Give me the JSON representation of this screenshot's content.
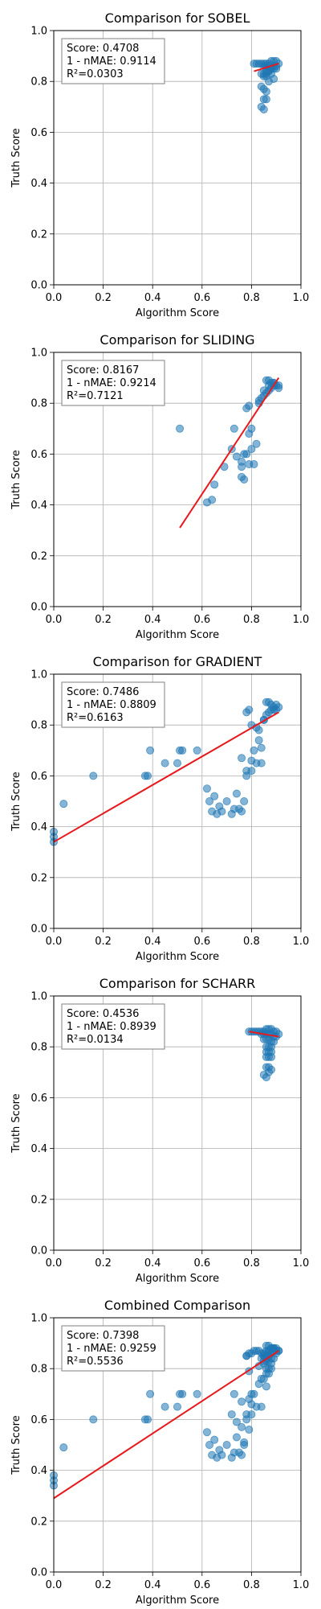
{
  "chart_data": [
    {
      "type": "scatter",
      "title": "Comparison for SOBEL",
      "xlabel": "Algorithm Score",
      "ylabel": "Truth Score",
      "xlim": [
        0,
        1
      ],
      "ylim": [
        0,
        1
      ],
      "xticks": [
        "0.0",
        "0.2",
        "0.4",
        "0.6",
        "0.8",
        "1.0"
      ],
      "yticks": [
        "0.0",
        "0.2",
        "0.4",
        "0.6",
        "0.8",
        "1.0"
      ],
      "grid": true,
      "stats": [
        "Score: 0.4708",
        "1 - nMAE: 0.9114",
        "R²=0.0303"
      ],
      "fit": [
        [
          0.81,
          0.84
        ],
        [
          0.91,
          0.87
        ]
      ],
      "x": [
        0.81,
        0.82,
        0.83,
        0.84,
        0.85,
        0.86,
        0.87,
        0.88,
        0.89,
        0.9,
        0.91,
        0.85,
        0.86,
        0.87,
        0.88,
        0.89,
        0.9,
        0.86,
        0.87,
        0.88,
        0.89,
        0.9,
        0.84,
        0.85,
        0.86,
        0.87,
        0.88,
        0.85,
        0.86,
        0.84,
        0.85,
        0.86,
        0.85,
        0.86,
        0.84,
        0.85,
        0.87,
        0.89
      ],
      "y": [
        0.87,
        0.87,
        0.87,
        0.87,
        0.87,
        0.87,
        0.87,
        0.88,
        0.88,
        0.88,
        0.87,
        0.86,
        0.86,
        0.86,
        0.85,
        0.86,
        0.86,
        0.84,
        0.84,
        0.85,
        0.85,
        0.85,
        0.83,
        0.83,
        0.83,
        0.84,
        0.83,
        0.82,
        0.82,
        0.78,
        0.77,
        0.76,
        0.73,
        0.73,
        0.7,
        0.69,
        0.8,
        0.81
      ]
    },
    {
      "type": "scatter",
      "title": "Comparison for SLIDING",
      "xlabel": "Algorithm Score",
      "ylabel": "Truth Score",
      "xlim": [
        0,
        1
      ],
      "ylim": [
        0,
        1
      ],
      "xticks": [
        "0.0",
        "0.2",
        "0.4",
        "0.6",
        "0.8",
        "1.0"
      ],
      "yticks": [
        "0.0",
        "0.2",
        "0.4",
        "0.6",
        "0.8",
        "1.0"
      ],
      "grid": true,
      "stats": [
        "Score: 0.8167",
        "1 - nMAE: 0.9214",
        "R²=0.7121"
      ],
      "fit": [
        [
          0.51,
          0.31
        ],
        [
          0.91,
          0.9
        ]
      ],
      "x": [
        0.51,
        0.62,
        0.64,
        0.65,
        0.69,
        0.72,
        0.73,
        0.74,
        0.76,
        0.76,
        0.77,
        0.78,
        0.79,
        0.8,
        0.81,
        0.82,
        0.83,
        0.84,
        0.85,
        0.86,
        0.87,
        0.88,
        0.89,
        0.9,
        0.91,
        0.86,
        0.87,
        0.88,
        0.89,
        0.78,
        0.79,
        0.8,
        0.76,
        0.77,
        0.79,
        0.83,
        0.85,
        0.87,
        0.89,
        0.91
      ],
      "y": [
        0.7,
        0.41,
        0.42,
        0.48,
        0.55,
        0.62,
        0.7,
        0.59,
        0.57,
        0.51,
        0.5,
        0.6,
        0.56,
        0.62,
        0.56,
        0.64,
        0.8,
        0.82,
        0.83,
        0.84,
        0.85,
        0.86,
        0.87,
        0.87,
        0.86,
        0.89,
        0.89,
        0.88,
        0.88,
        0.78,
        0.79,
        0.7,
        0.55,
        0.6,
        0.68,
        0.81,
        0.85,
        0.87,
        0.88,
        0.87
      ]
    },
    {
      "type": "scatter",
      "title": "Comparison for GRADIENT",
      "xlabel": "Algorithm Score",
      "ylabel": "Truth Score",
      "xlim": [
        0,
        1
      ],
      "ylim": [
        0,
        1
      ],
      "xticks": [
        "0.0",
        "0.2",
        "0.4",
        "0.6",
        "0.8",
        "1.0"
      ],
      "yticks": [
        "0.0",
        "0.2",
        "0.4",
        "0.6",
        "0.8",
        "1.0"
      ],
      "grid": true,
      "stats": [
        "Score: 0.7486",
        "1 - nMAE: 0.8809",
        "R²=0.6163"
      ],
      "fit": [
        [
          0.0,
          0.34
        ],
        [
          0.91,
          0.85
        ]
      ],
      "x": [
        0.0,
        0.0,
        0.0,
        0.04,
        0.16,
        0.37,
        0.38,
        0.39,
        0.45,
        0.5,
        0.51,
        0.52,
        0.58,
        0.62,
        0.63,
        0.64,
        0.65,
        0.66,
        0.67,
        0.68,
        0.7,
        0.72,
        0.73,
        0.74,
        0.75,
        0.76,
        0.76,
        0.77,
        0.78,
        0.78,
        0.8,
        0.8,
        0.81,
        0.82,
        0.83,
        0.84,
        0.85,
        0.86,
        0.87,
        0.88,
        0.89,
        0.9,
        0.91,
        0.86,
        0.87,
        0.88,
        0.89,
        0.9,
        0.78,
        0.79,
        0.84,
        0.82,
        0.83,
        0.85,
        0.8
      ],
      "y": [
        0.34,
        0.36,
        0.38,
        0.49,
        0.6,
        0.6,
        0.6,
        0.7,
        0.65,
        0.65,
        0.7,
        0.7,
        0.7,
        0.55,
        0.5,
        0.46,
        0.52,
        0.45,
        0.48,
        0.46,
        0.5,
        0.45,
        0.47,
        0.53,
        0.47,
        0.46,
        0.67,
        0.5,
        0.6,
        0.62,
        0.66,
        0.62,
        0.7,
        0.65,
        0.74,
        0.65,
        0.82,
        0.84,
        0.85,
        0.86,
        0.87,
        0.88,
        0.87,
        0.89,
        0.89,
        0.88,
        0.86,
        0.86,
        0.85,
        0.86,
        0.71,
        0.79,
        0.78,
        0.82,
        0.8
      ]
    },
    {
      "type": "scatter",
      "title": "Comparison for SCHARR",
      "xlabel": "Algorithm Score",
      "ylabel": "Truth Score",
      "xlim": [
        0,
        1
      ],
      "ylim": [
        0,
        1
      ],
      "xticks": [
        "0.0",
        "0.2",
        "0.4",
        "0.6",
        "0.8",
        "1.0"
      ],
      "yticks": [
        "0.0",
        "0.2",
        "0.4",
        "0.6",
        "0.8",
        "1.0"
      ],
      "grid": true,
      "stats": [
        "Score: 0.4536",
        "1 - nMAE: 0.8939",
        "R²=0.0134"
      ],
      "fit": [
        [
          0.79,
          0.86
        ],
        [
          0.91,
          0.84
        ]
      ],
      "x": [
        0.79,
        0.8,
        0.81,
        0.82,
        0.83,
        0.84,
        0.85,
        0.86,
        0.87,
        0.88,
        0.89,
        0.9,
        0.91,
        0.84,
        0.85,
        0.86,
        0.87,
        0.88,
        0.89,
        0.9,
        0.85,
        0.86,
        0.87,
        0.88,
        0.89,
        0.86,
        0.87,
        0.88,
        0.86,
        0.87,
        0.88,
        0.86,
        0.87,
        0.88,
        0.86,
        0.87,
        0.87,
        0.88,
        0.85,
        0.86
      ],
      "y": [
        0.86,
        0.86,
        0.86,
        0.86,
        0.86,
        0.86,
        0.86,
        0.87,
        0.87,
        0.87,
        0.86,
        0.86,
        0.85,
        0.85,
        0.85,
        0.85,
        0.85,
        0.85,
        0.84,
        0.84,
        0.83,
        0.83,
        0.83,
        0.82,
        0.82,
        0.8,
        0.8,
        0.8,
        0.78,
        0.78,
        0.78,
        0.76,
        0.76,
        0.76,
        0.72,
        0.72,
        0.7,
        0.71,
        0.69,
        0.68
      ]
    },
    {
      "type": "scatter",
      "title": "Combined Comparison",
      "xlabel": "Algorithm Score",
      "ylabel": "Truth Score",
      "xlim": [
        0,
        1
      ],
      "ylim": [
        0,
        1
      ],
      "xticks": [
        "0.0",
        "0.2",
        "0.4",
        "0.6",
        "0.8",
        "1.0"
      ],
      "yticks": [
        "0.0",
        "0.2",
        "0.4",
        "0.6",
        "0.8",
        "1.0"
      ],
      "grid": true,
      "stats": [
        "Score: 0.7398",
        "1 - nMAE: 0.9259",
        "R²=0.5536"
      ],
      "fit": [
        [
          0.0,
          0.29
        ],
        [
          0.91,
          0.87
        ]
      ],
      "x": [
        0.0,
        0.0,
        0.0,
        0.04,
        0.16,
        0.37,
        0.38,
        0.39,
        0.45,
        0.5,
        0.51,
        0.52,
        0.58,
        0.62,
        0.63,
        0.64,
        0.65,
        0.66,
        0.67,
        0.68,
        0.7,
        0.72,
        0.73,
        0.74,
        0.75,
        0.76,
        0.76,
        0.77,
        0.78,
        0.78,
        0.79,
        0.8,
        0.8,
        0.81,
        0.82,
        0.83,
        0.84,
        0.85,
        0.86,
        0.87,
        0.88,
        0.89,
        0.9,
        0.91,
        0.86,
        0.87,
        0.88,
        0.89,
        0.9,
        0.78,
        0.79,
        0.8,
        0.81,
        0.82,
        0.83,
        0.84,
        0.85,
        0.86,
        0.87,
        0.88,
        0.89,
        0.9,
        0.84,
        0.85,
        0.86,
        0.87,
        0.88,
        0.89,
        0.85,
        0.86,
        0.87,
        0.88,
        0.86,
        0.87,
        0.88,
        0.86,
        0.87,
        0.84,
        0.85,
        0.86,
        0.72,
        0.73,
        0.74,
        0.76,
        0.77,
        0.79,
        0.8,
        0.83,
        0.85,
        0.87,
        0.89,
        0.91,
        0.78,
        0.79
      ],
      "y": [
        0.34,
        0.36,
        0.38,
        0.49,
        0.6,
        0.6,
        0.6,
        0.7,
        0.65,
        0.65,
        0.7,
        0.7,
        0.7,
        0.55,
        0.5,
        0.46,
        0.52,
        0.45,
        0.48,
        0.46,
        0.5,
        0.45,
        0.47,
        0.53,
        0.47,
        0.46,
        0.67,
        0.5,
        0.6,
        0.62,
        0.56,
        0.66,
        0.62,
        0.7,
        0.65,
        0.74,
        0.65,
        0.82,
        0.84,
        0.85,
        0.86,
        0.87,
        0.88,
        0.87,
        0.89,
        0.89,
        0.88,
        0.88,
        0.86,
        0.85,
        0.86,
        0.86,
        0.87,
        0.87,
        0.87,
        0.86,
        0.86,
        0.87,
        0.87,
        0.88,
        0.88,
        0.87,
        0.84,
        0.85,
        0.85,
        0.85,
        0.84,
        0.84,
        0.83,
        0.83,
        0.83,
        0.82,
        0.8,
        0.8,
        0.8,
        0.78,
        0.78,
        0.76,
        0.76,
        0.73,
        0.62,
        0.7,
        0.59,
        0.57,
        0.51,
        0.68,
        0.7,
        0.81,
        0.85,
        0.87,
        0.88,
        0.87,
        0.85,
        0.79
      ]
    }
  ]
}
